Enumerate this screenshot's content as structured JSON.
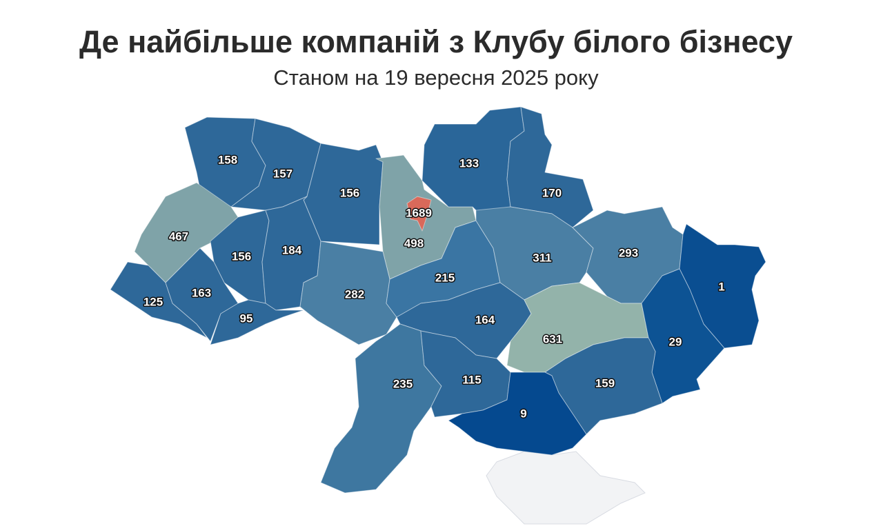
{
  "map_data": {
    "title": "Де найбільше компаній з Клубу білого бізнесу",
    "subtitle": "Станом на 19 вересня 2025 року",
    "regions": [
      {
        "value": 158,
        "color": "#2e6899"
      },
      {
        "value": 157,
        "color": "#2e6899"
      },
      {
        "value": 156,
        "color": "#2e6899"
      },
      {
        "value": 498,
        "color": "#7fa3a8"
      },
      {
        "value": 1689,
        "color": "#d9695a"
      },
      {
        "value": 133,
        "color": "#2a6699"
      },
      {
        "value": 170,
        "color": "#2e6899"
      },
      {
        "value": 467,
        "color": "#7fa3a8"
      },
      {
        "value": 156,
        "color": "#2e6899"
      },
      {
        "value": 184,
        "color": "#2e6899"
      },
      {
        "value": 125,
        "color": "#2e6899"
      },
      {
        "value": 163,
        "color": "#2e6899"
      },
      {
        "value": 95,
        "color": "#2e6899"
      },
      {
        "value": 282,
        "color": "#4a7fa4"
      },
      {
        "value": 215,
        "color": "#3a75a3"
      },
      {
        "value": 311,
        "color": "#4a7fa4"
      },
      {
        "value": 293,
        "color": "#4a7fa4"
      },
      {
        "value": 1,
        "color": "#0a4e91"
      },
      {
        "value": 164,
        "color": "#2e6899"
      },
      {
        "value": 631,
        "color": "#93b3aa"
      },
      {
        "value": 29,
        "color": "#0d5394"
      },
      {
        "value": 235,
        "color": "#3e77a0"
      },
      {
        "value": 115,
        "color": "#2e6899"
      },
      {
        "value": 159,
        "color": "#2e6899"
      },
      {
        "value": 9,
        "color": "#05498f"
      }
    ]
  }
}
